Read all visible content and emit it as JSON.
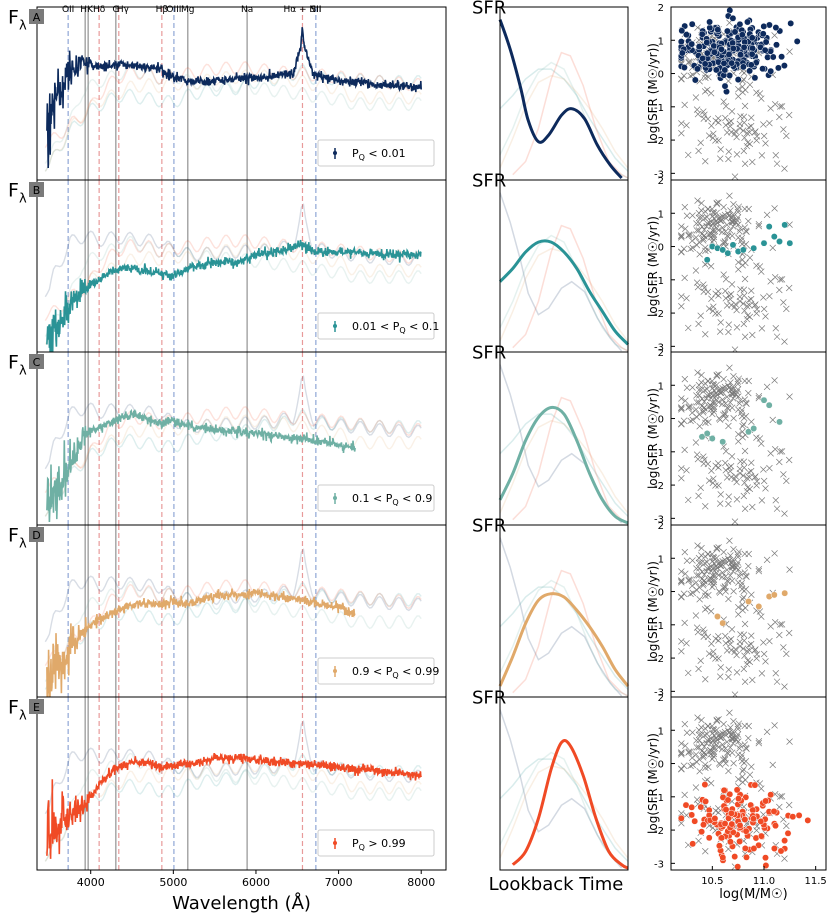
{
  "chart_data": [
    {
      "type": "line",
      "panel": "spectra",
      "xlabel": "Wavelength (Å)",
      "ylabel": "F_λ",
      "xlim": [
        3350,
        8300
      ],
      "ylim": [
        0,
        1
      ],
      "xticks": [
        4000,
        5000,
        6000,
        7000,
        8000
      ],
      "line_labels": [
        {
          "text": "OII",
          "x": 3727
        },
        {
          "text": "HK",
          "x": 3950
        },
        {
          "text": "Hδ",
          "x": 4102
        },
        {
          "text": "G",
          "x": 4304
        },
        {
          "text": "Hγ",
          "x": 4390
        },
        {
          "text": "Hβ",
          "x": 4861
        },
        {
          "text": "OIII",
          "x": 5007
        },
        {
          "text": "Mg",
          "x": 5175
        },
        {
          "text": "Na",
          "x": 5893
        },
        {
          "text": "Hα + NII",
          "x": 6563
        },
        {
          "text": "SII",
          "x": 6725
        }
      ],
      "lines_gray": [
        3933,
        3969,
        4304,
        5175,
        5893
      ],
      "lines_blue_dashed": [
        3727,
        5007,
        6725
      ],
      "lines_red_dashed": [
        4102,
        4340,
        4861,
        6563
      ],
      "rows": [
        {
          "label": "A",
          "legend": "P",
          "legend_sub": "Q",
          "legend_cond": " < 0.01",
          "color": "#0d2a5c",
          "points": [
            [
              3500,
              0.35
            ],
            [
              3560,
              0.47
            ],
            [
              3650,
              0.55
            ],
            [
              3720,
              0.62
            ],
            [
              3750,
              0.66
            ],
            [
              3850,
              0.68
            ],
            [
              3950,
              0.7
            ],
            [
              4100,
              0.67
            ],
            [
              4300,
              0.69
            ],
            [
              4500,
              0.68
            ],
            [
              4700,
              0.67
            ],
            [
              4860,
              0.66
            ],
            [
              4900,
              0.63
            ],
            [
              5000,
              0.62
            ],
            [
              5200,
              0.58
            ],
            [
              5500,
              0.59
            ],
            [
              5800,
              0.6
            ],
            [
              6200,
              0.61
            ],
            [
              6450,
              0.64
            ],
            [
              6540,
              0.8
            ],
            [
              6563,
              0.9
            ],
            [
              6590,
              0.8
            ],
            [
              6700,
              0.62
            ],
            [
              7000,
              0.59
            ],
            [
              7500,
              0.56
            ],
            [
              8000,
              0.55
            ]
          ]
        },
        {
          "label": "B",
          "legend": "0.01 < P",
          "legend_sub": "Q",
          "legend_cond": " < 0.1",
          "color": "#2a9396",
          "points": [
            [
              3500,
              0.05
            ],
            [
              3600,
              0.15
            ],
            [
              3800,
              0.3
            ],
            [
              4000,
              0.4
            ],
            [
              4200,
              0.46
            ],
            [
              4400,
              0.5
            ],
            [
              4600,
              0.48
            ],
            [
              4860,
              0.46
            ],
            [
              5000,
              0.45
            ],
            [
              5200,
              0.5
            ],
            [
              5500,
              0.53
            ],
            [
              5800,
              0.54
            ],
            [
              6000,
              0.58
            ],
            [
              6300,
              0.6
            ],
            [
              6563,
              0.65
            ],
            [
              6700,
              0.6
            ],
            [
              7000,
              0.6
            ],
            [
              7500,
              0.58
            ],
            [
              8000,
              0.58
            ]
          ]
        },
        {
          "label": "C",
          "legend": "0.1 < P",
          "legend_sub": "Q",
          "legend_cond": " < 0.9",
          "color": "#6fb0a4",
          "points": [
            [
              3500,
              0.1
            ],
            [
              3600,
              0.2
            ],
            [
              3800,
              0.38
            ],
            [
              3900,
              0.52
            ],
            [
              4100,
              0.58
            ],
            [
              4300,
              0.62
            ],
            [
              4500,
              0.66
            ],
            [
              4700,
              0.62
            ],
            [
              4860,
              0.6
            ],
            [
              5000,
              0.62
            ],
            [
              5200,
              0.58
            ],
            [
              5500,
              0.56
            ],
            [
              5800,
              0.55
            ],
            [
              6000,
              0.54
            ],
            [
              6300,
              0.52
            ],
            [
              6600,
              0.5
            ],
            [
              6800,
              0.48
            ],
            [
              7000,
              0.47
            ],
            [
              7200,
              0.44
            ]
          ]
        },
        {
          "label": "D",
          "legend": "0.9 < P",
          "legend_sub": "Q",
          "legend_cond": " < 0.99",
          "color": "#e0a96a",
          "points": [
            [
              3500,
              0.05
            ],
            [
              3600,
              0.15
            ],
            [
              3800,
              0.32
            ],
            [
              3950,
              0.4
            ],
            [
              4100,
              0.46
            ],
            [
              4300,
              0.5
            ],
            [
              4500,
              0.55
            ],
            [
              4700,
              0.56
            ],
            [
              4860,
              0.55
            ],
            [
              5000,
              0.57
            ],
            [
              5200,
              0.56
            ],
            [
              5500,
              0.6
            ],
            [
              5800,
              0.61
            ],
            [
              6000,
              0.62
            ],
            [
              6300,
              0.6
            ],
            [
              6563,
              0.58
            ],
            [
              6800,
              0.55
            ],
            [
              7000,
              0.54
            ],
            [
              7200,
              0.48
            ]
          ]
        },
        {
          "label": "E",
          "legend": "P",
          "legend_sub": "Q",
          "legend_cond": " > 0.99",
          "color": "#f04a25",
          "points": [
            [
              3500,
              0.2
            ],
            [
              3600,
              0.24
            ],
            [
              3800,
              0.33
            ],
            [
              3950,
              0.38
            ],
            [
              4100,
              0.5
            ],
            [
              4300,
              0.6
            ],
            [
              4500,
              0.64
            ],
            [
              4700,
              0.63
            ],
            [
              4860,
              0.6
            ],
            [
              5000,
              0.62
            ],
            [
              5200,
              0.63
            ],
            [
              5500,
              0.66
            ],
            [
              5800,
              0.67
            ],
            [
              6000,
              0.66
            ],
            [
              6300,
              0.64
            ],
            [
              6563,
              0.63
            ],
            [
              6800,
              0.62
            ],
            [
              7000,
              0.61
            ],
            [
              7500,
              0.58
            ],
            [
              8000,
              0.56
            ]
          ]
        }
      ]
    },
    {
      "type": "line",
      "panel": "star-formation-history",
      "xlabel": "Lookback Time",
      "ylabel": "SFR",
      "rows": [
        {
          "color": "#0d2a5c",
          "points": [
            [
              0,
              0.96
            ],
            [
              0.08,
              0.78
            ],
            [
              0.16,
              0.55
            ],
            [
              0.22,
              0.35
            ],
            [
              0.3,
              0.22
            ],
            [
              0.38,
              0.26
            ],
            [
              0.48,
              0.38
            ],
            [
              0.56,
              0.42
            ],
            [
              0.66,
              0.36
            ],
            [
              0.76,
              0.2
            ],
            [
              0.86,
              0.08
            ],
            [
              0.95,
              0
            ]
          ]
        },
        {
          "color": "#2a9396",
          "points": [
            [
              0,
              0.42
            ],
            [
              0.1,
              0.5
            ],
            [
              0.2,
              0.6
            ],
            [
              0.3,
              0.66
            ],
            [
              0.4,
              0.66
            ],
            [
              0.5,
              0.6
            ],
            [
              0.6,
              0.5
            ],
            [
              0.7,
              0.36
            ],
            [
              0.8,
              0.24
            ],
            [
              0.9,
              0.12
            ],
            [
              1,
              0.04
            ]
          ]
        },
        {
          "color": "#6fb0a4",
          "points": [
            [
              0,
              0.14
            ],
            [
              0.1,
              0.3
            ],
            [
              0.2,
              0.5
            ],
            [
              0.3,
              0.64
            ],
            [
              0.4,
              0.7
            ],
            [
              0.5,
              0.66
            ],
            [
              0.6,
              0.5
            ],
            [
              0.7,
              0.3
            ],
            [
              0.8,
              0.14
            ],
            [
              0.9,
              0.04
            ],
            [
              1,
              0
            ]
          ]
        },
        {
          "color": "#e0a96a",
          "points": [
            [
              0,
              0.06
            ],
            [
              0.1,
              0.24
            ],
            [
              0.2,
              0.44
            ],
            [
              0.3,
              0.58
            ],
            [
              0.4,
              0.62
            ],
            [
              0.5,
              0.6
            ],
            [
              0.6,
              0.52
            ],
            [
              0.7,
              0.42
            ],
            [
              0.8,
              0.3
            ],
            [
              0.9,
              0.16
            ],
            [
              1,
              0.06
            ]
          ]
        },
        {
          "color": "#f04a25",
          "points": [
            [
              0.1,
              0.02
            ],
            [
              0.2,
              0.1
            ],
            [
              0.3,
              0.3
            ],
            [
              0.4,
              0.6
            ],
            [
              0.48,
              0.76
            ],
            [
              0.55,
              0.74
            ],
            [
              0.65,
              0.56
            ],
            [
              0.75,
              0.3
            ],
            [
              0.85,
              0.1
            ],
            [
              0.95,
              0.02
            ],
            [
              1,
              0
            ]
          ]
        }
      ]
    },
    {
      "type": "scatter",
      "panel": "main-sequence",
      "xlabel": "log(M/M☉)",
      "ylabel": "log(SFR (M☉/yr))",
      "xlim": [
        10.1,
        11.6
      ],
      "ylim": [
        -3.2,
        2.0
      ],
      "xticks": [
        10.5,
        11.0,
        11.5
      ],
      "yticks": [
        -3,
        -2,
        -1,
        0,
        1,
        2
      ],
      "rows": [
        {
          "color": "#0d2a5c",
          "n": 260,
          "mean": [
            10.65,
            0.75
          ],
          "spread": [
            0.25,
            0.42
          ]
        },
        {
          "color": "#2a9396",
          "n": 15,
          "points": [
            [
              10.5,
              0.0
            ],
            [
              10.55,
              -0.05
            ],
            [
              10.6,
              -0.1
            ],
            [
              10.45,
              -0.4
            ],
            [
              10.7,
              0.05
            ],
            [
              10.75,
              -0.15
            ],
            [
              10.8,
              -0.1
            ],
            [
              11.05,
              0.6
            ],
            [
              11.1,
              0.3
            ],
            [
              11.2,
              0.65
            ],
            [
              11.25,
              0.1
            ],
            [
              10.65,
              -0.2
            ],
            [
              11.0,
              0.1
            ],
            [
              10.9,
              -0.05
            ],
            [
              11.15,
              0.15
            ]
          ]
        },
        {
          "color": "#6fb0a4",
          "n": 9,
          "points": [
            [
              10.4,
              -0.55
            ],
            [
              10.45,
              -0.45
            ],
            [
              10.5,
              -0.6
            ],
            [
              10.6,
              -0.7
            ],
            [
              10.85,
              -0.4
            ],
            [
              10.9,
              -0.3
            ],
            [
              11.05,
              0.4
            ],
            [
              11.0,
              0.55
            ],
            [
              11.15,
              -0.1
            ]
          ]
        },
        {
          "color": "#e0a96a",
          "n": 7,
          "points": [
            [
              10.55,
              -0.75
            ],
            [
              10.6,
              -0.95
            ],
            [
              10.85,
              -0.3
            ],
            [
              10.95,
              -0.45
            ],
            [
              11.05,
              -0.15
            ],
            [
              11.1,
              -0.1
            ],
            [
              11.2,
              -0.05
            ]
          ]
        },
        {
          "color": "#f04a25",
          "n": 140,
          "mean": [
            10.75,
            -1.75
          ],
          "spread": [
            0.24,
            0.5
          ]
        }
      ],
      "background_marker": "x"
    }
  ]
}
